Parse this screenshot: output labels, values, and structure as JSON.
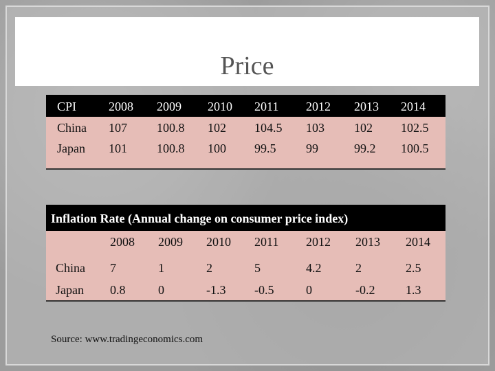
{
  "title": "Price",
  "table1": {
    "header": [
      "CPI",
      2008,
      2009,
      2010,
      2011,
      2012,
      2013,
      2014
    ],
    "rows": [
      [
        "China",
        107,
        100.8,
        102,
        104.5,
        103,
        102,
        102.5
      ],
      [
        "Japan",
        101,
        100.8,
        100,
        99.5,
        99,
        99.2,
        100.5
      ]
    ]
  },
  "table2": {
    "title": "Inflation Rate (Annual change on consumer price index)",
    "header": [
      2008,
      2009,
      2010,
      2011,
      2012,
      2013,
      2014
    ],
    "rows": [
      [
        "China",
        7,
        1,
        2,
        5,
        4.2,
        2,
        2.5
      ],
      [
        "Japan",
        0.8,
        0,
        -1.3,
        -0.5,
        0,
        -0.2,
        1.3
      ]
    ]
  },
  "source": "Source: www.tradingeconomics.com"
}
